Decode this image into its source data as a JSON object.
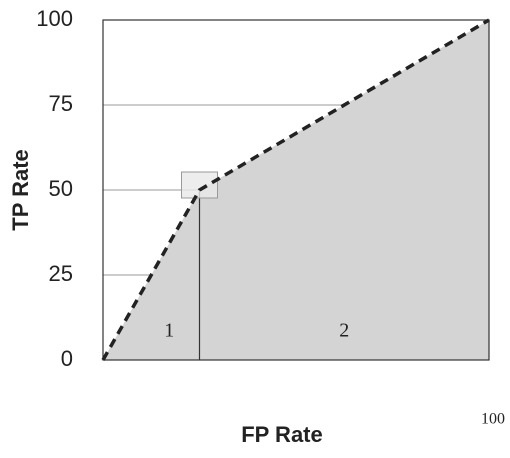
{
  "chart_data": {
    "type": "line",
    "x_label": "FP Rate",
    "y_label": "TP Rate",
    "x": [
      0,
      25,
      100
    ],
    "values": [
      0,
      50,
      100
    ],
    "color": "#222222",
    "fill_color": "#d4d4d4",
    "dashed": true,
    "xlim": [
      0,
      100
    ],
    "ylim": [
      0,
      100
    ],
    "xticks": [
      100
    ],
    "yticks": [
      0,
      25,
      50,
      75,
      100
    ],
    "grid": true,
    "region_labels": [
      "1",
      "2"
    ]
  }
}
